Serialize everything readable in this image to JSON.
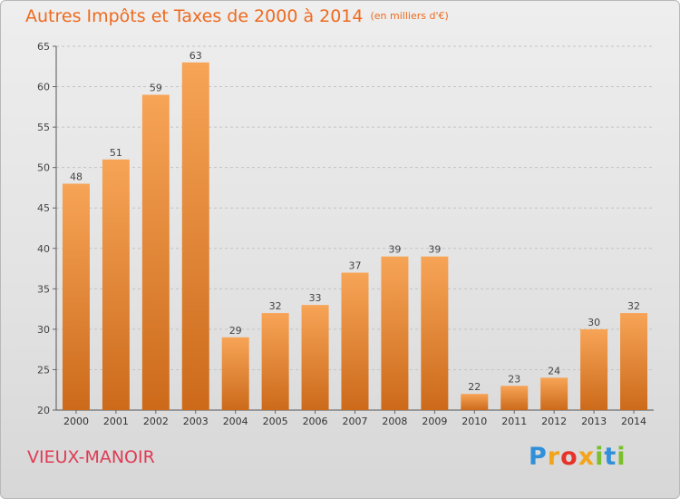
{
  "header": {
    "title": "Autres Impôts et Taxes de 2000 à 2014",
    "unit": "(en milliers d'€)"
  },
  "footer": {
    "commune": "VIEUX-MANOIR",
    "logo_text": "Proxiti"
  },
  "colors": {
    "bar_top": "#f7a457",
    "bar_bottom": "#cc6a1a",
    "title": "#ee6a1e",
    "commune": "#de3c55"
  },
  "chart_data": {
    "type": "bar",
    "title": "Autres Impôts et Taxes de 2000 à 2014",
    "subtitle": "(en milliers d'€)",
    "categories": [
      "2000",
      "2001",
      "2002",
      "2003",
      "2004",
      "2005",
      "2006",
      "2007",
      "2008",
      "2009",
      "2010",
      "2011",
      "2012",
      "2013",
      "2014"
    ],
    "values": [
      48,
      51,
      59,
      63,
      29,
      32,
      33,
      37,
      39,
      39,
      22,
      23,
      24,
      30,
      32
    ],
    "ylim": [
      20,
      65
    ],
    "yticks": [
      20,
      25,
      30,
      35,
      40,
      45,
      50,
      55,
      60,
      65
    ],
    "grid": "horizontal dashed",
    "data_labels": true
  }
}
